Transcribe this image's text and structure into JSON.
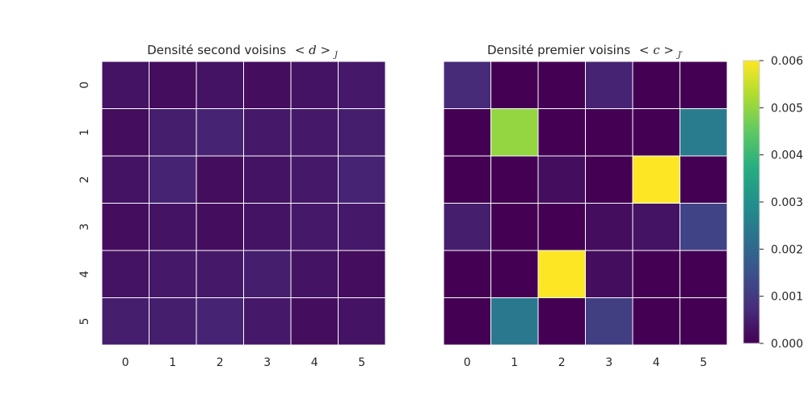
{
  "chart_data": [
    {
      "type": "heatmap",
      "title_main": "Densité second voisins",
      "title_math": "< d >",
      "title_sub": "J",
      "x_categories": [
        "0",
        "1",
        "2",
        "3",
        "4",
        "5"
      ],
      "y_categories": [
        "0",
        "1",
        "2",
        "3",
        "4",
        "5"
      ],
      "colormap": "viridis",
      "vmin": 0.0,
      "vmax": 0.006,
      "values": [
        [
          0.0003,
          0.0002,
          0.0003,
          0.0002,
          0.0003,
          0.0004
        ],
        [
          0.0002,
          0.0005,
          0.0006,
          0.0004,
          0.0004,
          0.0005
        ],
        [
          0.0003,
          0.0006,
          0.0002,
          0.0003,
          0.0004,
          0.0006
        ],
        [
          0.0002,
          0.0003,
          0.0002,
          0.0003,
          0.0004,
          0.0004
        ],
        [
          0.0003,
          0.0004,
          0.0004,
          0.0005,
          0.0003,
          0.0002
        ],
        [
          0.0005,
          0.0005,
          0.0006,
          0.0004,
          0.0002,
          0.0003
        ]
      ]
    },
    {
      "type": "heatmap",
      "title_main": "Densité premier voisins",
      "title_math": "< c >",
      "title_sub": "J′",
      "x_categories": [
        "0",
        "1",
        "2",
        "3",
        "4",
        "5"
      ],
      "y_categories": [
        "0",
        "1",
        "2",
        "3",
        "4",
        "5"
      ],
      "colormap": "viridis",
      "vmin": 0.0,
      "vmax": 0.006,
      "values": [
        [
          0.0007,
          0.0,
          0.0,
          0.0006,
          0.0,
          0.0
        ],
        [
          0.0,
          0.005,
          0.0,
          0.0,
          0.0,
          0.0025
        ],
        [
          0.0,
          0.0,
          0.0002,
          0.0,
          0.006,
          0.0
        ],
        [
          0.0005,
          0.0,
          0.0,
          0.0002,
          0.0003,
          0.0012
        ],
        [
          0.0,
          0.0,
          0.006,
          0.0002,
          0.0,
          0.0
        ],
        [
          0.0,
          0.0024,
          0.0,
          0.0011,
          0.0,
          0.0
        ]
      ]
    }
  ],
  "colorbar": {
    "ticks": [
      "0.000",
      "0.001",
      "0.002",
      "0.003",
      "0.004",
      "0.005",
      "0.006"
    ],
    "tick_values": [
      0.0,
      0.001,
      0.002,
      0.003,
      0.004,
      0.005,
      0.006
    ]
  }
}
